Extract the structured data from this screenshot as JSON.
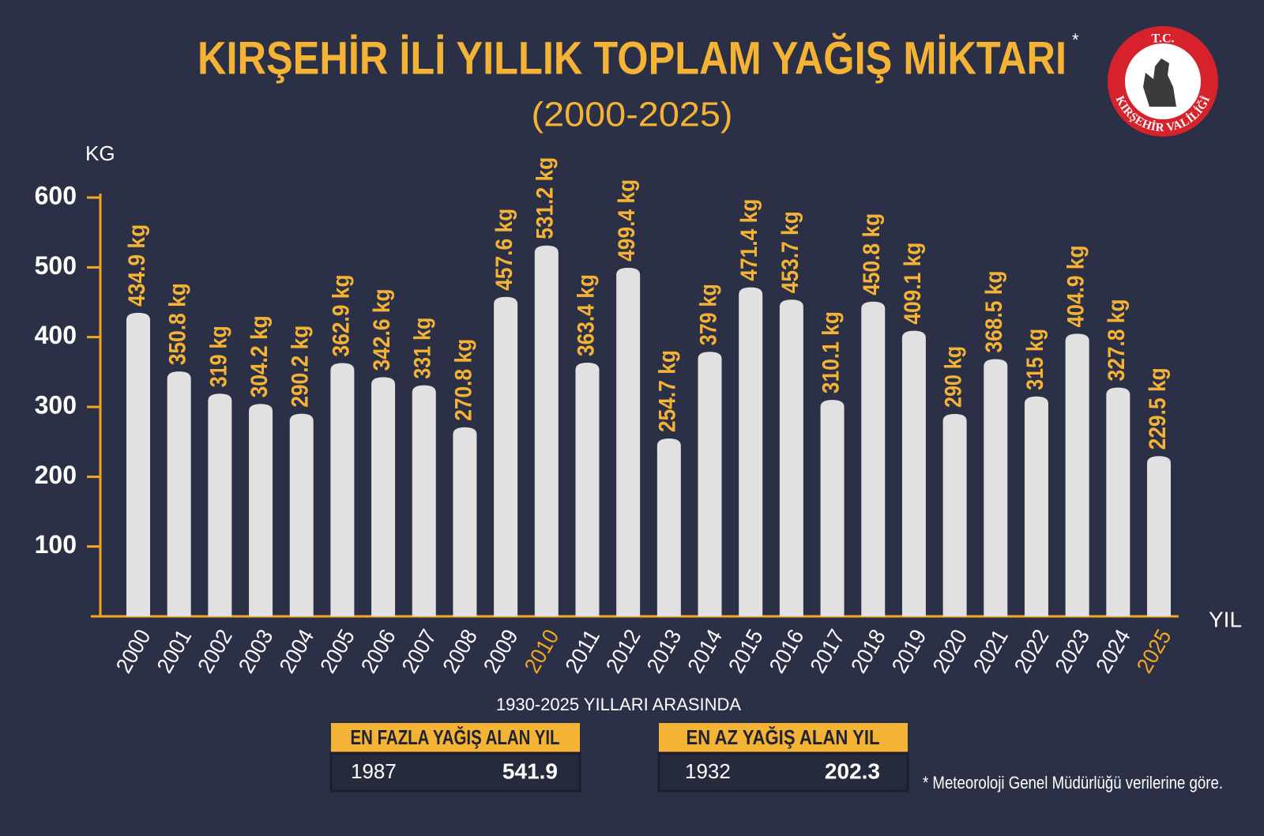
{
  "chart_data": {
    "type": "bar",
    "title": "KIRŞEHİR İLİ YILLIK TOPLAM YAĞIŞ MİKTARI",
    "title_mark": "*",
    "subtitle": "(2000-2025)",
    "y_axis_label": "KG",
    "x_axis_label": "YIL",
    "categories": [
      "2000",
      "2001",
      "2002",
      "2003",
      "2004",
      "2005",
      "2006",
      "2007",
      "2008",
      "2009",
      "2010",
      "2011",
      "2012",
      "2013",
      "2014",
      "2015",
      "2016",
      "2017",
      "2018",
      "2019",
      "2020",
      "2021",
      "2022",
      "2023",
      "2024",
      "2025"
    ],
    "values": [
      434.9,
      350.8,
      319,
      304.2,
      290.2,
      362.9,
      342.6,
      331,
      270.8,
      457.6,
      531.2,
      363.4,
      499.4,
      254.7,
      379,
      471.4,
      453.7,
      310.1,
      450.8,
      409.1,
      290,
      368.5,
      315,
      404.9,
      327.8,
      229.5
    ],
    "value_labels": [
      "434.9 kg",
      "350.8 kg",
      "319 kg",
      "304.2 kg",
      "290.2 kg",
      "362.9 kg",
      "342.6 kg",
      "331 kg",
      "270.8 kg",
      "457.6 kg",
      "531.2 kg",
      "363.4 kg",
      "499.4 kg",
      "254.7 kg",
      "379 kg",
      "471.4 kg",
      "453.7 kg",
      "310.1 kg",
      "450.8 kg",
      "409.1 kg",
      "290 kg",
      "368.5 kg",
      "315 kg",
      "404.9 kg",
      "327.8 kg",
      "229.5 kg"
    ],
    "color": "#e1e1e1",
    "value_label_color": "#f5b335",
    "axis_color": "#f5a623",
    "category_label_colors": [
      "#ffffff",
      "#ffffff",
      "#ffffff",
      "#ffffff",
      "#ffffff",
      "#ffffff",
      "#ffffff",
      "#ffffff",
      "#ffffff",
      "#ffffff",
      "#f5a623",
      "#ffffff",
      "#ffffff",
      "#ffffff",
      "#ffffff",
      "#ffffff",
      "#ffffff",
      "#ffffff",
      "#ffffff",
      "#ffffff",
      "#ffffff",
      "#ffffff",
      "#ffffff",
      "#ffffff",
      "#ffffff",
      "#f5a623"
    ],
    "ylim": [
      0,
      600
    ],
    "yticks": [
      100,
      200,
      300,
      400,
      500,
      600
    ],
    "grid": false
  },
  "logo": {
    "top": "T.C.",
    "bottom": "KIRŞEHİR VALİLİĞİ"
  },
  "summary": {
    "heading": "1930-2025 YILLARI ARASINDA",
    "boxes": [
      {
        "title": "EN FAZLA YAĞIŞ ALAN YIL",
        "year": "1987",
        "value": 541.9
      },
      {
        "title": "EN AZ YAĞIŞ ALAN YIL",
        "year": "1932",
        "value": 202.3
      }
    ]
  },
  "footnote": "* Meteoroloji Genel Müdürlüğü verilerine göre."
}
